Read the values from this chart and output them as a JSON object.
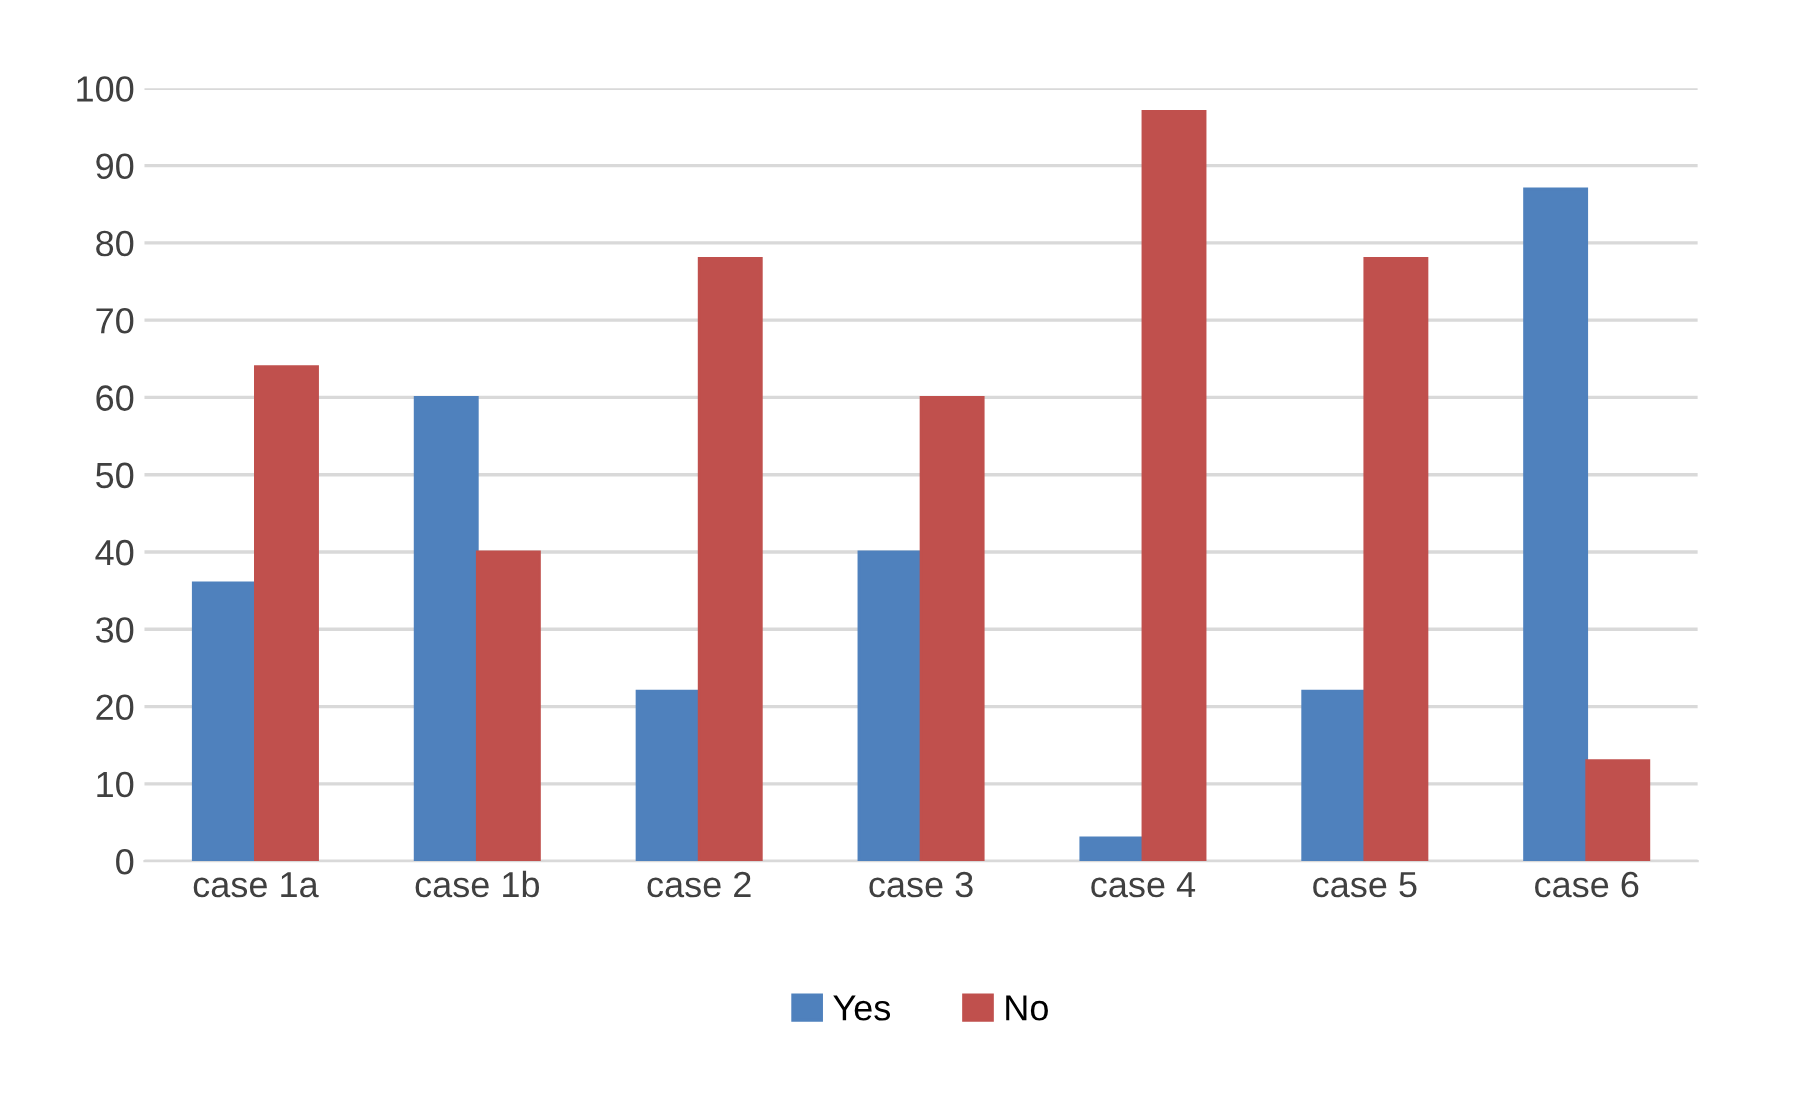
{
  "chart_data": {
    "type": "bar",
    "categories": [
      "case 1a",
      "case 1b",
      "case 2",
      "case 3",
      "case 4",
      "case 5",
      "case 6"
    ],
    "series": [
      {
        "name": "Yes",
        "color": "#4f81bd",
        "values": [
          36,
          60,
          22,
          40,
          3,
          22,
          87
        ]
      },
      {
        "name": "No",
        "color": "#c0504d",
        "values": [
          64,
          40,
          78,
          60,
          97,
          78,
          13
        ]
      }
    ],
    "ylim": [
      0,
      100
    ],
    "yticks": [
      0,
      10,
      20,
      30,
      40,
      50,
      60,
      70,
      80,
      90,
      100
    ],
    "grid": "y",
    "legend": "bottom"
  }
}
